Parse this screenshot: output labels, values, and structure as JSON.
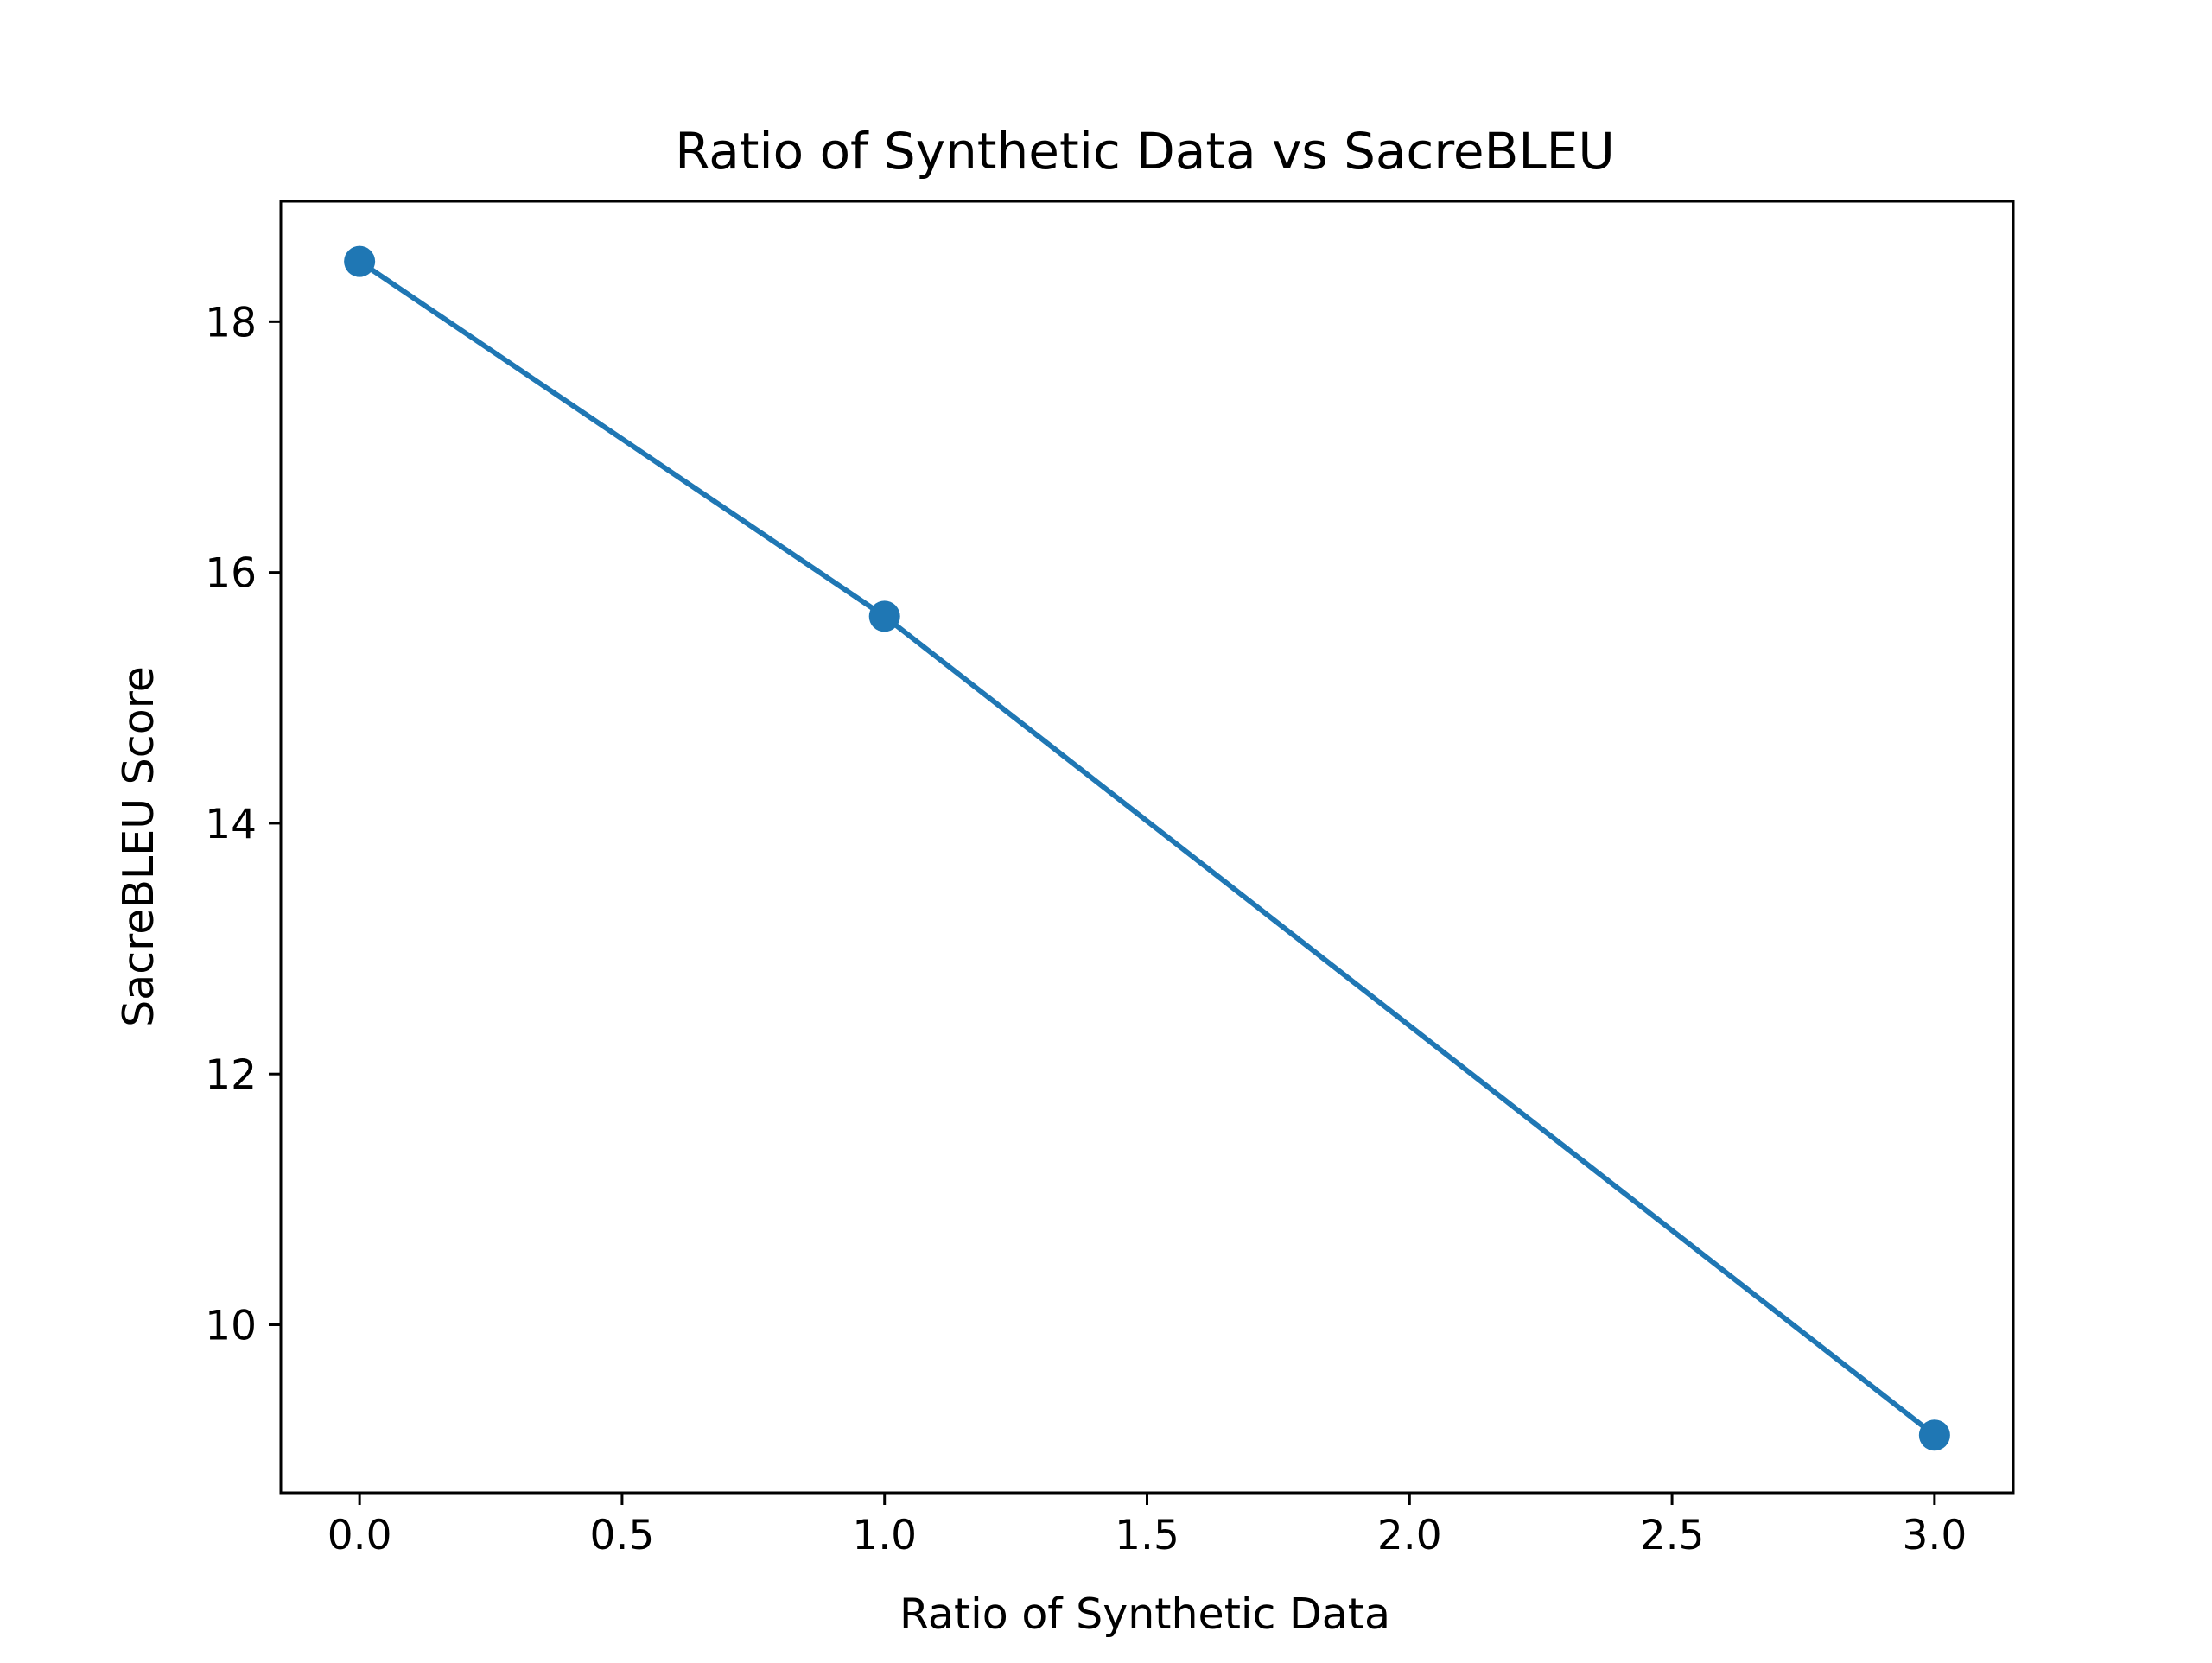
{
  "chart_data": {
    "type": "line",
    "title": "Ratio of Synthetic Data vs SacreBLEU",
    "xlabel": "Ratio of Synthetic Data",
    "ylabel": "SacreBLEU Score",
    "x_ticks": [
      "0.0",
      "0.5",
      "1.0",
      "1.5",
      "2.0",
      "2.5",
      "3.0"
    ],
    "y_ticks": [
      "10",
      "12",
      "14",
      "16",
      "18"
    ],
    "xlim": [
      -0.15,
      3.15
    ],
    "ylim": [
      8.66,
      18.96
    ],
    "grid": false,
    "series": [
      {
        "x": [
          0,
          1,
          3
        ],
        "y": [
          18.48,
          15.65,
          9.12
        ],
        "color": "#1f77b4",
        "marker": "circle"
      }
    ]
  }
}
